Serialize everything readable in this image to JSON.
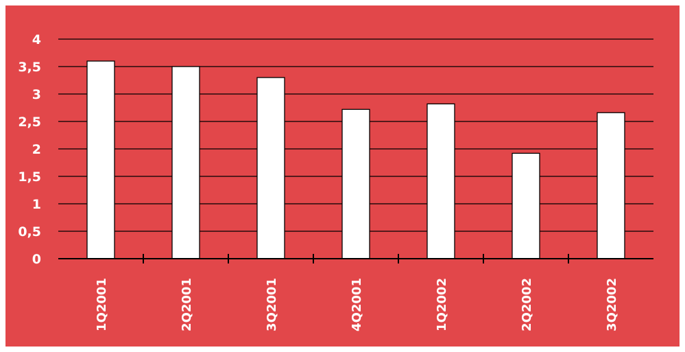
{
  "colors": {
    "background": "#e2474a",
    "bar_fill": "#ffffff",
    "bar_stroke": "#000000",
    "gridline": "#000000",
    "tick_text": "#ffffff"
  },
  "chart_data": {
    "type": "bar",
    "categories": [
      "1Q2001",
      "2Q2001",
      "3Q2001",
      "4Q2001",
      "1Q2002",
      "2Q2002",
      "3Q2002"
    ],
    "values": [
      3.6,
      3.5,
      3.3,
      2.72,
      2.82,
      1.92,
      2.66
    ],
    "y_ticks": [
      "0",
      "0,5",
      "1",
      "1,5",
      "2",
      "2,5",
      "3",
      "3,5",
      "4"
    ],
    "ylim": [
      0,
      4
    ],
    "ytick_step": 0.5,
    "grid": true,
    "legend": "none",
    "x_label_orientation": "vertical"
  }
}
